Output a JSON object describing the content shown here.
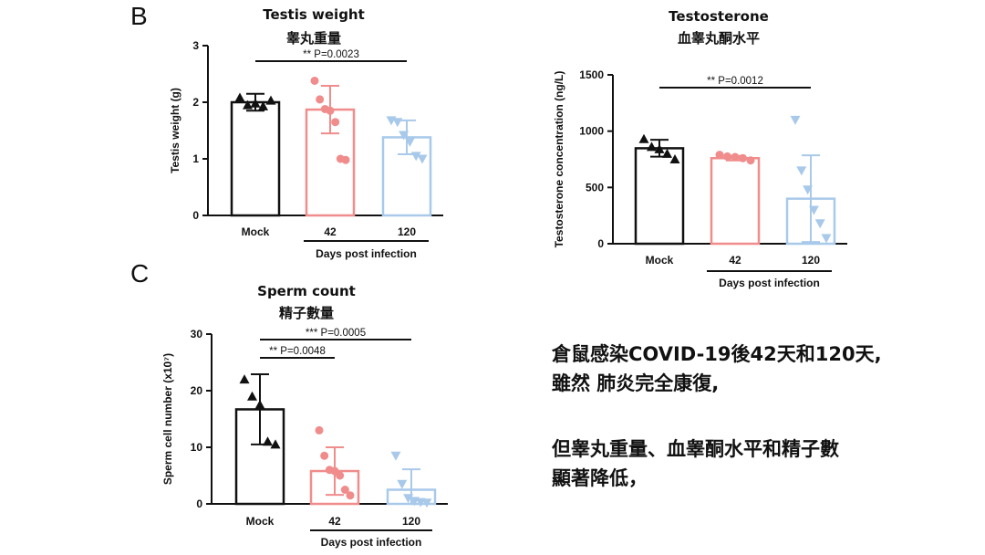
{
  "panels": {
    "b_letter": "B",
    "c_letter": "C"
  },
  "caption": {
    "line1": "倉鼠感染COVID-19後42天和120天,",
    "line2": "雖然 肺炎完全康復,",
    "line3": "但睾丸重量、血睾酮水平和精子數",
    "line4": "顯著降低，"
  },
  "colors": {
    "mock": "#111111",
    "d42": "#f08c8c",
    "d120": "#a9c9ea"
  },
  "chart_data": [
    {
      "id": "testis",
      "type": "bar",
      "title": "Testis weight",
      "subtitle": "睾丸重量",
      "ylabel": "Testis weight (g)",
      "ylim": [
        0,
        3
      ],
      "yticks": [
        0,
        1,
        2,
        3
      ],
      "categories": [
        "Mock",
        "42",
        "120"
      ],
      "group_label": "Days post infection",
      "values": [
        2.0,
        1.87,
        1.38
      ],
      "errors": [
        0.15,
        0.42,
        0.3
      ],
      "points": [
        [
          2.08,
          1.95,
          1.98,
          1.93,
          2.03
        ],
        [
          2.38,
          2.05,
          1.88,
          1.85,
          1.65,
          1.0,
          0.98
        ],
        [
          1.68,
          1.65,
          1.42,
          1.3,
          1.05,
          1.0
        ]
      ],
      "markers": [
        "triangle-up",
        "circle",
        "triangle-down"
      ],
      "significance": [
        {
          "from": 0,
          "to": 2,
          "label": "** P=0.0023"
        }
      ]
    },
    {
      "id": "testosterone",
      "type": "bar",
      "title": "Testosterone",
      "subtitle": "血睾丸酮水平",
      "ylabel": "Testosterone concentration (ng/L)",
      "ylim": [
        0,
        1500
      ],
      "yticks": [
        0,
        500,
        1000,
        1500
      ],
      "categories": [
        "Mock",
        "42",
        "120"
      ],
      "group_label": "Days post infection",
      "values": [
        848,
        760,
        400
      ],
      "errors": [
        75,
        20,
        385
      ],
      "points": [
        [
          930,
          860,
          840,
          800,
          750
        ],
        [
          790,
          775,
          770,
          760,
          740
        ],
        [
          1100,
          650,
          480,
          300,
          180,
          50
        ]
      ],
      "markers": [
        "triangle-up",
        "circle",
        "triangle-down"
      ],
      "significance": [
        {
          "from": 0,
          "to": 2,
          "label": "** P=0.0012"
        }
      ]
    },
    {
      "id": "sperm",
      "type": "bar",
      "title": "Sperm count",
      "subtitle": "精子數量",
      "ylabel": "Sperm cell number (x10⁷)",
      "ylim": [
        0,
        30
      ],
      "yticks": [
        0,
        10,
        20,
        30
      ],
      "categories": [
        "Mock",
        "42",
        "120"
      ],
      "group_label": "Days post infection",
      "values": [
        16.7,
        5.8,
        2.5
      ],
      "errors": [
        6.2,
        4.2,
        3.6
      ],
      "points": [
        [
          22.0,
          19.0,
          17.5,
          11.0,
          10.5
        ],
        [
          13.0,
          8.5,
          6.0,
          5.8,
          5.0,
          2.5,
          1.5
        ],
        [
          8.5,
          3.5,
          1.0,
          0.5,
          0.3,
          0.2
        ]
      ],
      "markers": [
        "triangle-up",
        "circle",
        "triangle-down"
      ],
      "significance": [
        {
          "from": 0,
          "to": 2,
          "label": "*** P=0.0005"
        },
        {
          "from": 0,
          "to": 1,
          "label": "** P=0.0048"
        }
      ]
    }
  ]
}
